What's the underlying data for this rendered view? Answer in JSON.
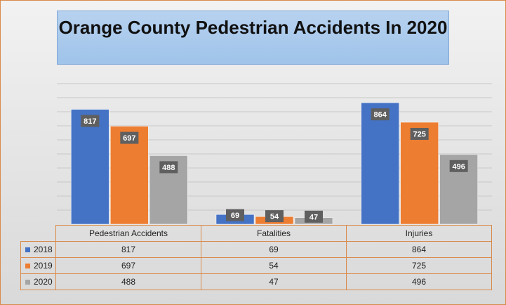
{
  "chart_data": {
    "type": "bar",
    "title": "Orange County Pedestrian Accidents In 2020",
    "categories": [
      "Pedestrian Accidents",
      "Fatalities",
      "Injuries"
    ],
    "series": [
      {
        "name": "2018",
        "values": [
          817,
          69,
          864
        ],
        "color": "#4472c4"
      },
      {
        "name": "2019",
        "values": [
          697,
          54,
          725
        ],
        "color": "#ed7d31"
      },
      {
        "name": "2020",
        "values": [
          488,
          47,
          496
        ],
        "color": "#a5a5a5"
      }
    ],
    "ylim": [
      0,
      1000
    ],
    "grid": true,
    "data_labels": true,
    "data_table": true
  }
}
